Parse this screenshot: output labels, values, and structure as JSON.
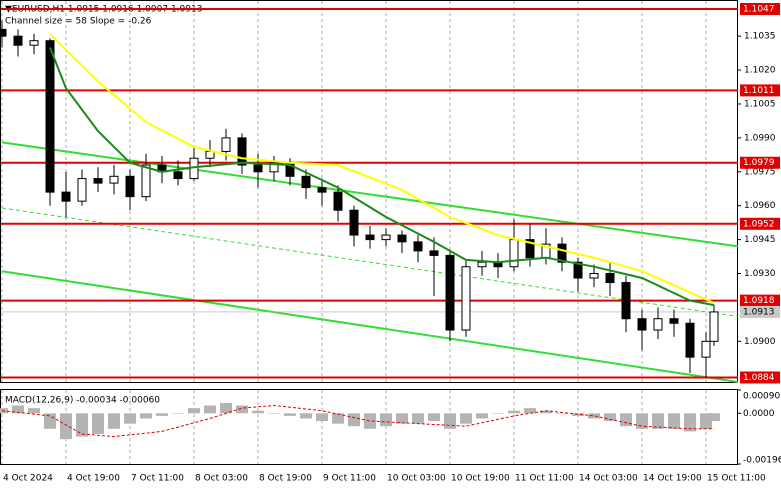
{
  "chart_data": [
    {
      "type": "candlestick",
      "title": "▼EURUSD,H1  1.0915 1.0916 1.0907 1.0913",
      "subtitle": "Channel size = 58 Slope = -0.26",
      "x": [
        0,
        4,
        8,
        12,
        16,
        20,
        24,
        28,
        32,
        36,
        40,
        44,
        48,
        52,
        56,
        60,
        64,
        68,
        72,
        76,
        80,
        84,
        88,
        92,
        96,
        100,
        104,
        108,
        112,
        116,
        120,
        124,
        128,
        132,
        136,
        140,
        144,
        148,
        152,
        156,
        160,
        164,
        168,
        172,
        176,
        178
      ],
      "open": [
        1.1038,
        1.1035,
        1.1031,
        1.1033,
        1.0966,
        1.0962,
        1.0972,
        1.097,
        1.0973,
        1.0964,
        1.0978,
        1.0975,
        1.0972,
        1.0981,
        1.0984,
        1.099,
        1.0978,
        1.0975,
        1.0979,
        1.0973,
        1.0968,
        1.0966,
        1.0958,
        1.0947,
        1.0945,
        1.0947,
        1.0944,
        1.094,
        1.0938,
        1.0905,
        1.0933,
        1.0935,
        1.0933,
        1.0945,
        1.0937,
        1.0943,
        1.0935,
        1.0928,
        1.093,
        1.0926,
        1.091,
        1.0905,
        1.091,
        1.0908,
        1.0893,
        1.09
      ],
      "high": [
        1.1042,
        1.1038,
        1.1036,
        1.1034,
        1.0975,
        1.0976,
        1.0977,
        1.0978,
        1.0976,
        1.0983,
        1.0982,
        1.098,
        1.0986,
        1.0989,
        1.0994,
        1.0992,
        1.0983,
        1.0982,
        1.0981,
        1.0976,
        1.0972,
        1.0969,
        1.096,
        1.0951,
        1.095,
        1.0949,
        1.0947,
        1.0946,
        1.094,
        1.0936,
        1.094,
        1.0939,
        1.0954,
        1.0952,
        1.095,
        1.0946,
        1.0937,
        1.0934,
        1.0935,
        1.0929,
        1.0914,
        1.0915,
        1.0914,
        1.091,
        1.0904,
        1.0916
      ],
      "low": [
        1.103,
        1.1026,
        1.1027,
        1.096,
        1.0955,
        1.096,
        1.0966,
        1.0965,
        1.0958,
        1.0962,
        1.097,
        1.0969,
        1.0971,
        1.0977,
        1.098,
        1.0974,
        1.0968,
        1.0971,
        1.0969,
        1.0963,
        1.096,
        1.0953,
        1.0942,
        1.0941,
        1.0942,
        1.0939,
        1.0935,
        1.092,
        1.09,
        1.0902,
        1.0929,
        1.0928,
        1.0931,
        1.0933,
        1.0934,
        1.0931,
        1.0922,
        1.0924,
        1.092,
        1.0904,
        1.0896,
        1.0901,
        1.0902,
        1.0886,
        1.0884,
        1.0898
      ],
      "close": [
        1.1035,
        1.1031,
        1.1033,
        1.0966,
        1.0962,
        1.0972,
        1.097,
        1.0973,
        1.0964,
        1.0978,
        1.0975,
        1.0972,
        1.0981,
        1.0984,
        1.099,
        1.0978,
        1.0975,
        1.0979,
        1.0973,
        1.0968,
        1.0966,
        1.0958,
        1.0947,
        1.0945,
        1.0947,
        1.0944,
        1.094,
        1.0938,
        1.0905,
        1.0933,
        1.0935,
        1.0933,
        1.0945,
        1.0937,
        1.0943,
        1.0935,
        1.0928,
        1.093,
        1.0926,
        1.091,
        1.0905,
        1.091,
        1.0908,
        1.0893,
        1.09,
        1.0913
      ],
      "xlim": [
        0,
        184
      ],
      "xticks": [
        {
          "value": 0,
          "label": "4 Oct 2024"
        },
        {
          "value": 16,
          "label": "4 Oct 19:00"
        },
        {
          "value": 32,
          "label": "7 Oct 11:00"
        },
        {
          "value": 48,
          "label": "8 Oct 03:00"
        },
        {
          "value": 64,
          "label": "8 Oct 19:00"
        },
        {
          "value": 80,
          "label": "9 Oct 11:00"
        },
        {
          "value": 96,
          "label": "10 Oct 03:00"
        },
        {
          "value": 112,
          "label": "10 Oct 19:00"
        },
        {
          "value": 128,
          "label": "11 Oct 11:00"
        },
        {
          "value": 144,
          "label": "14 Oct 03:00"
        },
        {
          "value": 160,
          "label": "14 Oct 19:00"
        },
        {
          "value": 176,
          "label": "15 Oct 11:00"
        }
      ],
      "ylim": [
        1.0882,
        1.1051
      ],
      "yticks": [
        {
          "value": 1.1035,
          "label": "1.1035"
        },
        {
          "value": 1.102,
          "label": "1.1020"
        },
        {
          "value": 1.1005,
          "label": "1.1005"
        },
        {
          "value": 1.099,
          "label": "1.0990"
        },
        {
          "value": 1.0975,
          "label": "1.0975"
        },
        {
          "value": 1.096,
          "label": "1.0960"
        },
        {
          "value": 1.0945,
          "label": "1.0945"
        },
        {
          "value": 1.093,
          "label": "1.0930"
        },
        {
          "value": 1.09,
          "label": "1.0900"
        }
      ],
      "levels": [
        {
          "value": 1.1047,
          "label": "1.1047"
        },
        {
          "value": 1.1011,
          "label": "1.1011"
        },
        {
          "value": 1.0979,
          "label": "1.0979"
        },
        {
          "value": 1.0952,
          "label": "1.0952"
        },
        {
          "value": 1.0918,
          "label": "1.0918"
        },
        {
          "value": 1.0884,
          "label": "1.0884"
        }
      ],
      "level_color": "#e00000",
      "last_price": {
        "value": 1.0913,
        "label": "1.0913"
      },
      "series": [
        {
          "color": "#ffff00",
          "x": [
            12,
            24,
            36,
            48,
            60,
            72,
            84,
            100,
            112,
            124,
            136,
            148,
            160,
            178
          ],
          "values": [
            1.1036,
            1.1015,
            1.0997,
            1.0986,
            1.0981,
            1.0979,
            1.0978,
            1.0967,
            1.0955,
            1.0947,
            1.0942,
            1.0937,
            1.0931,
            1.0917
          ]
        },
        {
          "color": "#1a8a1a",
          "x": [
            12,
            16,
            24,
            32,
            40,
            48,
            60,
            72,
            84,
            96,
            108,
            116,
            124,
            136,
            148,
            160,
            172,
            178
          ],
          "values": [
            1.103,
            1.1012,
            1.0993,
            1.0979,
            1.0975,
            1.0977,
            1.0979,
            1.0978,
            1.0968,
            1.0955,
            1.0944,
            1.0936,
            1.0935,
            1.0937,
            1.0933,
            1.0928,
            1.0918,
            1.0916
          ]
        }
      ],
      "channel": {
        "color": "#33dd33",
        "x": [
          0,
          184
        ],
        "upper": [
          1.0988,
          1.0942
        ],
        "middle": [
          1.0959,
          1.0911
        ],
        "lower": [
          1.0931,
          1.0882
        ]
      }
    },
    {
      "type": "bar",
      "title": "MACD(12,26,9) -0.00034 -0.00060",
      "x": [
        0,
        4,
        8,
        12,
        16,
        20,
        24,
        28,
        32,
        36,
        40,
        44,
        48,
        52,
        56,
        60,
        64,
        68,
        72,
        76,
        80,
        84,
        88,
        92,
        96,
        100,
        104,
        108,
        112,
        116,
        120,
        124,
        128,
        132,
        136,
        140,
        144,
        148,
        152,
        156,
        160,
        164,
        168,
        172,
        176,
        178
      ],
      "values": [
        0.0002,
        0.0003,
        0.0002,
        -0.0006,
        -0.001,
        -0.0009,
        -0.0008,
        -0.0006,
        -0.0004,
        -0.0002,
        -0.0001,
        0.0,
        0.0002,
        0.0003,
        0.0004,
        0.0003,
        0.0001,
        0.0,
        -0.0001,
        -0.0002,
        -0.0003,
        -0.0004,
        -0.0005,
        -0.0006,
        -0.0005,
        -0.0004,
        -0.0004,
        -0.0003,
        -0.0006,
        -0.0004,
        -0.0002,
        0.0,
        0.0001,
        0.0002,
        0.0001,
        0.0,
        -0.0001,
        -0.0002,
        -0.0003,
        -0.0005,
        -0.0006,
        -0.0006,
        -0.0006,
        -0.0007,
        -0.0006,
        -0.0003
      ],
      "color": "#b4b4b4",
      "signal": {
        "color": "#e00000",
        "x": [
          0,
          12,
          20,
          28,
          40,
          52,
          60,
          68,
          80,
          92,
          104,
          116,
          128,
          136,
          148,
          160,
          172,
          178
        ],
        "values": [
          0.0001,
          -0.0001,
          -0.0008,
          -0.0009,
          -0.0007,
          -0.0002,
          0.0002,
          0.0003,
          0.0001,
          -0.0003,
          -0.0004,
          -0.0005,
          -0.0001,
          0.0001,
          -0.0001,
          -0.0005,
          -0.0006,
          -0.0006
        ]
      },
      "xlim": [
        0,
        184
      ],
      "ylim": [
        -0.00196,
        0.0009
      ],
      "yticks": [
        {
          "value": 0.0009,
          "label": "0.00090"
        },
        {
          "value": 0.0,
          "label": "0.0000"
        },
        {
          "value": -0.00196,
          "label": "-0.00196"
        }
      ]
    }
  ]
}
